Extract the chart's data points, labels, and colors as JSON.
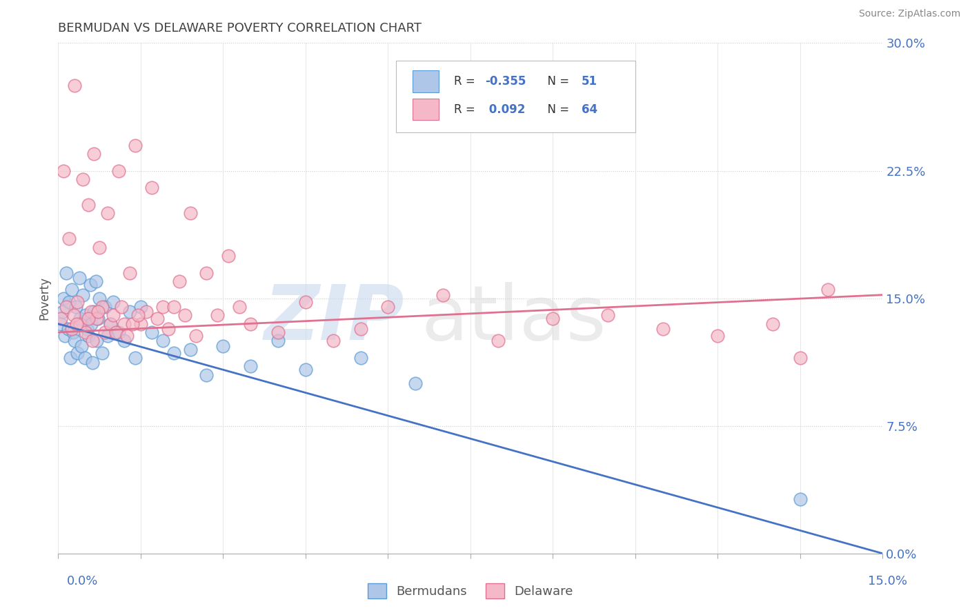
{
  "title": "BERMUDAN VS DELAWARE POVERTY CORRELATION CHART",
  "source_text": "Source: ZipAtlas.com",
  "ylabel": "Poverty",
  "ytick_values": [
    0.0,
    7.5,
    15.0,
    22.5,
    30.0
  ],
  "xlim": [
    0.0,
    15.0
  ],
  "ylim": [
    0.0,
    30.0
  ],
  "blue_fill": "#aec6e8",
  "blue_edge": "#5b9bd5",
  "pink_fill": "#f4b8c8",
  "pink_edge": "#e07090",
  "blue_line_color": "#4472c4",
  "pink_line_color": "#e07090",
  "axis_label_color": "#4472c4",
  "title_color": "#404040",
  "source_color": "#888888",
  "watermark_zip_color": "#c8d8ee",
  "watermark_atlas_color": "#d8d8d8",
  "blue_trend_y0": 13.5,
  "blue_trend_y1": 0.0,
  "pink_trend_y0": 13.0,
  "pink_trend_y1": 15.2,
  "bermudans_x": [
    0.05,
    0.08,
    0.1,
    0.12,
    0.15,
    0.18,
    0.2,
    0.22,
    0.25,
    0.27,
    0.3,
    0.32,
    0.35,
    0.38,
    0.4,
    0.42,
    0.45,
    0.48,
    0.5,
    0.52,
    0.55,
    0.58,
    0.6,
    0.62,
    0.65,
    0.68,
    0.7,
    0.72,
    0.75,
    0.8,
    0.85,
    0.9,
    0.95,
    1.0,
    1.1,
    1.2,
    1.3,
    1.4,
    1.5,
    1.7,
    1.9,
    2.1,
    2.4,
    2.7,
    3.0,
    3.5,
    4.0,
    4.5,
    5.5,
    6.5,
    13.5
  ],
  "bermudans_y": [
    13.5,
    14.2,
    15.0,
    12.8,
    16.5,
    13.2,
    14.8,
    11.5,
    15.5,
    13.0,
    12.5,
    14.5,
    11.8,
    16.2,
    13.8,
    12.2,
    15.2,
    11.5,
    14.0,
    13.2,
    12.8,
    15.8,
    13.5,
    11.2,
    14.2,
    16.0,
    12.5,
    13.8,
    15.0,
    11.8,
    14.5,
    12.8,
    13.5,
    14.8,
    13.0,
    12.5,
    14.2,
    11.5,
    14.5,
    13.0,
    12.5,
    11.8,
    12.0,
    10.5,
    12.2,
    11.0,
    12.5,
    10.8,
    11.5,
    10.0,
    3.2
  ],
  "delaware_x": [
    0.05,
    0.1,
    0.15,
    0.2,
    0.25,
    0.3,
    0.35,
    0.4,
    0.45,
    0.5,
    0.55,
    0.6,
    0.65,
    0.7,
    0.75,
    0.8,
    0.85,
    0.9,
    0.95,
    1.0,
    1.1,
    1.2,
    1.3,
    1.4,
    1.5,
    1.6,
    1.7,
    1.8,
    1.9,
    2.0,
    2.1,
    2.2,
    2.3,
    2.4,
    2.5,
    2.7,
    2.9,
    3.1,
    3.3,
    3.5,
    4.0,
    4.5,
    5.0,
    5.5,
    6.0,
    7.0,
    8.0,
    9.0,
    10.0,
    11.0,
    12.0,
    13.0,
    13.5,
    14.0,
    0.28,
    0.33,
    0.55,
    0.62,
    0.72,
    1.05,
    1.15,
    1.25,
    1.35,
    1.45
  ],
  "delaware_y": [
    13.8,
    22.5,
    14.5,
    18.5,
    13.2,
    27.5,
    14.8,
    13.5,
    22.0,
    13.0,
    20.5,
    14.2,
    23.5,
    13.8,
    18.0,
    14.5,
    13.0,
    20.0,
    13.5,
    14.0,
    22.5,
    13.5,
    16.5,
    24.0,
    13.5,
    14.2,
    21.5,
    13.8,
    14.5,
    13.2,
    14.5,
    16.0,
    14.0,
    20.0,
    12.8,
    16.5,
    14.0,
    17.5,
    14.5,
    13.5,
    13.0,
    14.8,
    12.5,
    13.2,
    14.5,
    15.2,
    12.5,
    13.8,
    14.0,
    13.2,
    12.8,
    13.5,
    11.5,
    15.5,
    14.0,
    13.5,
    13.8,
    12.5,
    14.2,
    13.0,
    14.5,
    12.8,
    13.5,
    14.0
  ]
}
